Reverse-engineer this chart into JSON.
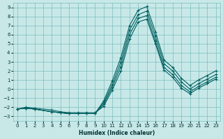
{
  "xlabel": "Humidex (Indice chaleur)",
  "ylabel": "",
  "xlim": [
    -0.5,
    23.5
  ],
  "ylim": [
    -3.5,
    9.5
  ],
  "xticks": [
    0,
    1,
    2,
    3,
    4,
    5,
    6,
    7,
    8,
    9,
    10,
    11,
    12,
    13,
    14,
    15,
    16,
    17,
    18,
    19,
    20,
    21,
    22,
    23
  ],
  "yticks": [
    -3,
    -2,
    -1,
    0,
    1,
    2,
    3,
    4,
    5,
    6,
    7,
    8,
    9
  ],
  "bg_color": "#c8e8e8",
  "grid_color": "#7bbcbc",
  "line_color": "#006060",
  "xA": [
    0,
    1,
    2,
    4,
    5,
    6,
    7,
    8,
    9,
    10,
    11,
    12,
    13,
    14,
    15,
    16,
    17,
    18,
    19,
    20,
    21,
    22,
    23
  ],
  "yA": [
    -2.2,
    -2.1,
    -2.2,
    -2.5,
    -2.6,
    -2.7,
    -2.7,
    -2.7,
    -2.7,
    -1.3,
    0.9,
    3.5,
    7.0,
    8.7,
    9.1,
    6.3,
    3.2,
    2.4,
    1.2,
    0.4,
    1.0,
    1.5,
    2.0
  ],
  "xB": [
    0,
    1,
    2,
    4,
    5,
    6,
    7,
    8,
    9,
    10,
    11,
    12,
    13,
    14,
    15,
    16,
    17,
    18,
    19,
    20,
    21,
    22,
    23
  ],
  "yB": [
    -2.2,
    -2.1,
    -2.2,
    -2.5,
    -2.6,
    -2.7,
    -2.7,
    -2.7,
    -2.7,
    -1.5,
    0.5,
    3.0,
    6.5,
    8.2,
    8.6,
    5.8,
    2.8,
    2.0,
    0.8,
    0.0,
    0.6,
    1.1,
    1.6
  ],
  "xC": [
    0,
    1,
    2,
    4,
    5,
    6,
    7,
    8,
    9,
    10,
    11,
    12,
    13,
    14,
    15,
    16,
    17,
    18,
    19,
    20,
    21,
    22,
    23
  ],
  "yC": [
    -2.2,
    -2.1,
    -2.2,
    -2.5,
    -2.6,
    -2.7,
    -2.7,
    -2.7,
    -2.7,
    -1.7,
    0.2,
    2.5,
    6.0,
    7.8,
    8.1,
    5.3,
    2.4,
    1.6,
    0.4,
    -0.3,
    0.3,
    0.8,
    1.3
  ],
  "xD": [
    0,
    1,
    2,
    4,
    5,
    6,
    7,
    8,
    9,
    10,
    11,
    12,
    13,
    14,
    15,
    16,
    17,
    18,
    19,
    20,
    21,
    22,
    23
  ],
  "yD": [
    -2.2,
    -2.0,
    -2.1,
    -2.3,
    -2.5,
    -2.6,
    -2.6,
    -2.6,
    -2.6,
    -1.9,
    -0.1,
    2.0,
    5.5,
    7.4,
    7.7,
    5.0,
    2.1,
    1.3,
    0.1,
    -0.5,
    0.1,
    0.6,
    1.1
  ]
}
